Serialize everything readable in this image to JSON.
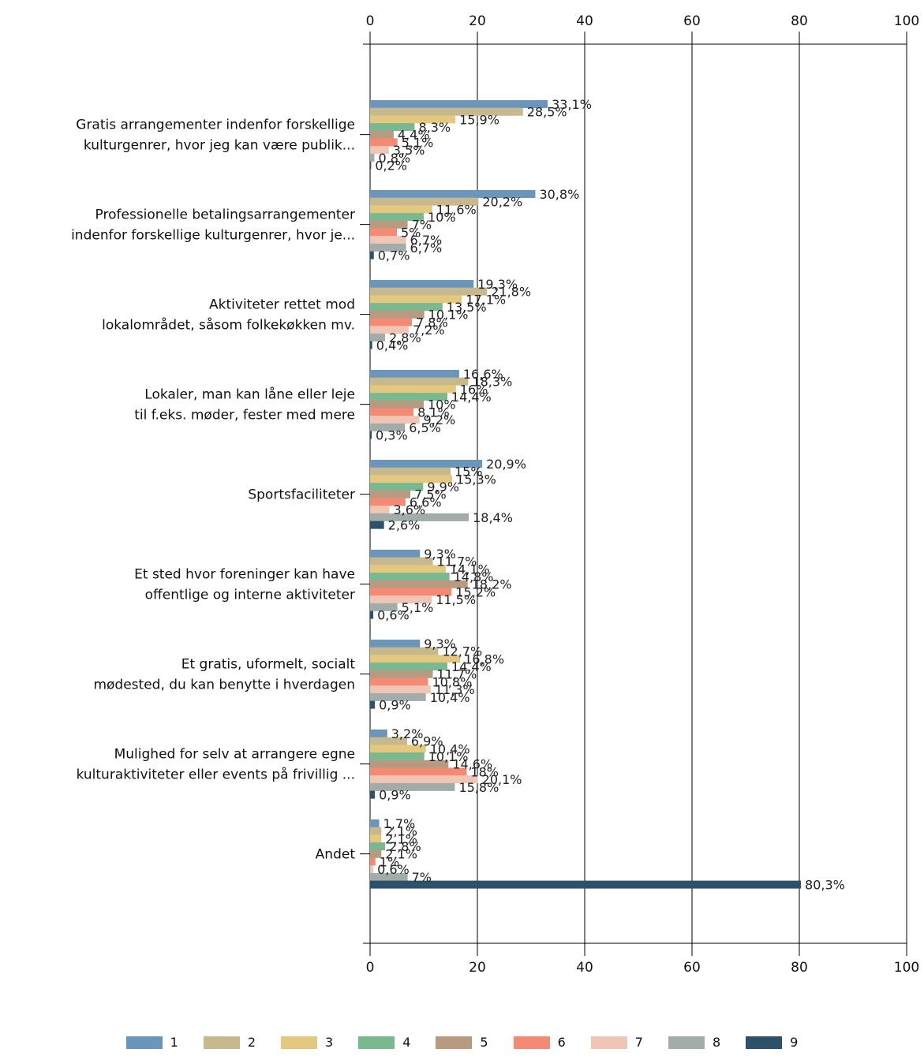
{
  "chart_data": {
    "type": "bar",
    "orientation": "horizontal",
    "xlim": [
      0,
      100
    ],
    "x_ticks": [
      "0",
      "20",
      "40",
      "60",
      "80",
      "100"
    ],
    "grid": true,
    "legend_position": "bottom",
    "categories": [
      "Gratis arrangementer indenfor forskellige\nkulturgenrer, hvor jeg kan være publik...",
      "Professionelle betalingsarrangementer\nindenfor forskellige kulturgenrer, hvor je...",
      "Aktiviteter rettet mod\nlokalområdet, såsom folkekøkken mv.",
      "Lokaler, man kan låne eller leje\ntil f.eks. møder, fester med mere",
      "Sportsfaciliteter",
      "Et sted hvor foreninger kan have\noffentlige og interne aktiviteter",
      "Et gratis, uformelt, socialt\nmødested, du kan benytte i hverdagen",
      "Mulighed for selv at arrangere egne\nkulturaktiviteter eller events på frivillig ...",
      "Andet"
    ],
    "series": [
      {
        "name": "1",
        "color": "#6b96bb",
        "values": [
          33.1,
          30.8,
          19.3,
          16.6,
          20.9,
          9.3,
          9.3,
          3.2,
          1.7
        ],
        "labels": [
          "33,1%",
          "30,8%",
          "19,3%",
          "16,6%",
          "20,9%",
          "9,3%",
          "9,3%",
          "3,2%",
          "1,7%"
        ]
      },
      {
        "name": "2",
        "color": "#c8b88d",
        "values": [
          28.5,
          20.2,
          21.8,
          18.3,
          15.0,
          11.7,
          12.7,
          6.9,
          2.1
        ],
        "labels": [
          "28,5%",
          "20,2%",
          "21,8%",
          "18,3%",
          "15%",
          "11,7%",
          "12,7%",
          "6,9%",
          "2,1%"
        ]
      },
      {
        "name": "3",
        "color": "#e2c97f",
        "values": [
          15.9,
          11.6,
          17.1,
          16.0,
          15.3,
          14.1,
          16.8,
          10.4,
          2.1
        ],
        "labels": [
          "15,9%",
          "11,6%",
          "17,1%",
          "16%",
          "15,3%",
          "14,1%",
          "16,8%",
          "10,4%",
          "2,1%"
        ]
      },
      {
        "name": "4",
        "color": "#7ab890",
        "values": [
          8.3,
          10.0,
          13.5,
          14.4,
          9.9,
          14.8,
          14.4,
          10.1,
          2.8
        ],
        "labels": [
          "8,3%",
          "10%",
          "13,5%",
          "14,4%",
          "9,9%",
          "14,8%",
          "14,4%",
          "10,1%",
          "2,8%"
        ]
      },
      {
        "name": "5",
        "color": "#b89a80",
        "values": [
          4.4,
          7.0,
          10.1,
          10.0,
          7.5,
          18.2,
          11.7,
          14.6,
          2.1
        ],
        "labels": [
          "4,4%",
          "7%",
          "10,1%",
          "10%",
          "7,5%",
          "18,2%",
          "11,7%",
          "14,6%",
          "2,1%"
        ]
      },
      {
        "name": "6",
        "color": "#f58a74",
        "values": [
          5.1,
          5.0,
          7.8,
          8.1,
          6.6,
          15.2,
          10.8,
          18.0,
          1.0
        ],
        "labels": [
          "5,1%",
          "5%",
          "7,8%",
          "8,1%",
          "6,6%",
          "15,2%",
          "10,8%",
          "18%",
          "1%"
        ]
      },
      {
        "name": "7",
        "color": "#efc6b6",
        "values": [
          3.5,
          6.7,
          7.2,
          9.2,
          3.6,
          11.5,
          11.3,
          20.1,
          0.6
        ],
        "labels": [
          "3,5%",
          "6,7%",
          "7,2%",
          "9,2%",
          "3,6%",
          "11,5%",
          "11,3%",
          "20,1%",
          "0,6%"
        ]
      },
      {
        "name": "8",
        "color": "#a2acab",
        "values": [
          0.8,
          6.7,
          2.8,
          6.5,
          18.4,
          5.1,
          10.4,
          15.8,
          7.0
        ],
        "labels": [
          "0,8%",
          "6,7%",
          "2,8%",
          "6,5%",
          "18,4%",
          "5,1%",
          "10,4%",
          "15,8%",
          "7%"
        ]
      },
      {
        "name": "9",
        "color": "#2c5168",
        "values": [
          0.2,
          0.7,
          0.4,
          0.3,
          2.6,
          0.6,
          0.9,
          0.9,
          80.3
        ],
        "labels": [
          "0,2%",
          "0,7%",
          "0,4%",
          "0,3%",
          "2,6%",
          "0,6%",
          "0,9%",
          "0,9%",
          "80,3%"
        ]
      }
    ]
  }
}
